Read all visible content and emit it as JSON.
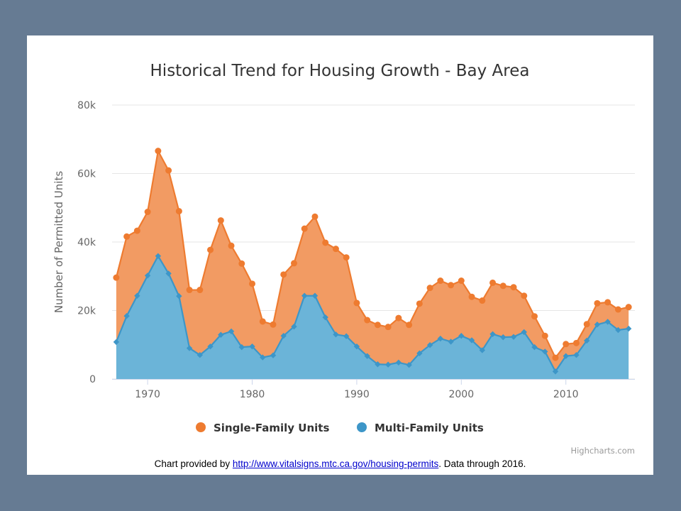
{
  "chart_data": {
    "type": "area",
    "stacking": "normal",
    "title": "Historical Trend for Housing Growth - Bay Area",
    "ylabel": "Number of Permitted Units",
    "xlabel": "",
    "ylim": [
      0,
      80000
    ],
    "yticks": [
      0,
      20000,
      40000,
      60000,
      80000
    ],
    "ytick_labels": [
      "0",
      "20k",
      "40k",
      "60k",
      "80k"
    ],
    "xlim": [
      1966.6,
      2016.6
    ],
    "xticks": [
      1970,
      1980,
      1990,
      2000,
      2010
    ],
    "xtick_labels": [
      "1970",
      "1980",
      "1990",
      "2000",
      "2010"
    ],
    "x": [
      1967,
      1968,
      1969,
      1970,
      1971,
      1972,
      1973,
      1974,
      1975,
      1976,
      1977,
      1978,
      1979,
      1980,
      1981,
      1982,
      1983,
      1984,
      1985,
      1986,
      1987,
      1988,
      1989,
      1990,
      1991,
      1992,
      1993,
      1994,
      1995,
      1996,
      1997,
      1998,
      1999,
      2000,
      2001,
      2002,
      2003,
      2004,
      2005,
      2006,
      2007,
      2008,
      2009,
      2010,
      2011,
      2012,
      2013,
      2014,
      2015,
      2016
    ],
    "series": [
      {
        "name": "Single-Family Units",
        "color": "#ee7b30",
        "fill": "#f29b63",
        "values": [
          18800,
          23200,
          19000,
          18600,
          30700,
          30100,
          24800,
          17000,
          19000,
          28200,
          33400,
          25000,
          24400,
          18300,
          10500,
          9000,
          17900,
          18500,
          19600,
          23100,
          21800,
          25000,
          23000,
          12700,
          10500,
          11500,
          11000,
          13000,
          11700,
          14500,
          16700,
          16900,
          16500,
          16100,
          12700,
          14500,
          15000,
          15000,
          14500,
          10600,
          9000,
          4600,
          4000,
          3500,
          3500,
          4800,
          6200,
          5700,
          6000,
          6300
        ],
        "stack_tops": [
          29600,
          41600,
          43300,
          48800,
          66600,
          60900,
          49000,
          26000,
          26000,
          37700,
          46300,
          38900,
          33700,
          27800,
          16800,
          15900,
          30500,
          33800,
          43900,
          47400,
          39800,
          38000,
          35500,
          22200,
          17200,
          15800,
          15200,
          17800,
          15800,
          22000,
          26600,
          28700,
          27400,
          28700,
          24000,
          22900,
          28100,
          27200,
          26800,
          24300,
          18300,
          12600,
          6200,
          10200,
          10500,
          16000,
          22100,
          22400,
          20300,
          21000
        ]
      },
      {
        "name": "Multi-Family Units",
        "color": "#3d96c8",
        "fill": "#6bb4d8",
        "values": [
          10800,
          18400,
          24300,
          30200,
          35900,
          30800,
          24200,
          9000,
          7000,
          9500,
          12900,
          13900,
          9300,
          9500,
          6300,
          6900,
          12600,
          15300,
          24300,
          24300,
          18000,
          13000,
          12500,
          9500,
          6700,
          4300,
          4200,
          4800,
          4100,
          7500,
          9900,
          11800,
          10900,
          12600,
          11300,
          8400,
          13100,
          12200,
          12300,
          13700,
          9300,
          8000,
          2200,
          6700,
          7000,
          11200,
          15900,
          16700,
          14300,
          14700
        ]
      }
    ],
    "legend": [
      "Single-Family Units",
      "Multi-Family Units"
    ],
    "credits": "Highcharts.com"
  },
  "caption": {
    "prefix": "Chart provided by ",
    "link": "http://www.vitalsigns.mtc.ca.gov/housing-permits",
    "suffix": ".  Data through 2016."
  }
}
